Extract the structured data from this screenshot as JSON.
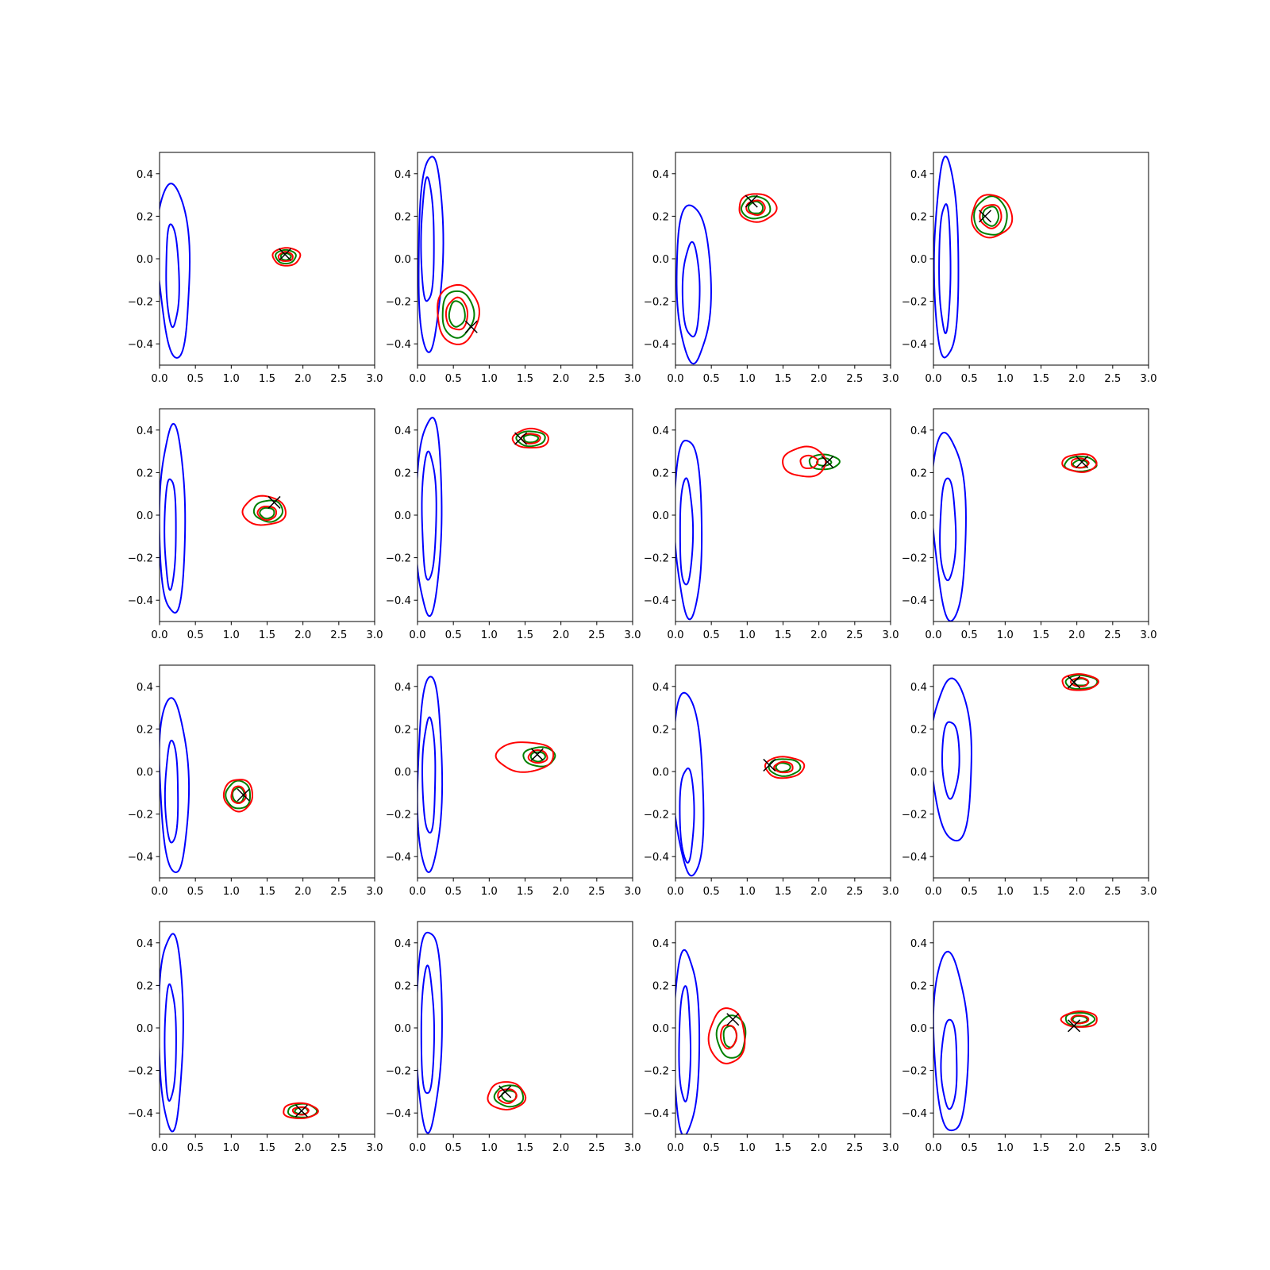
{
  "chart_data": {
    "type": "scatter",
    "layout": {
      "rows": 4,
      "cols": 4
    },
    "xlim": [
      0.0,
      3.0
    ],
    "ylim": [
      -0.5,
      0.5
    ],
    "xticks": [
      0.0,
      0.5,
      1.0,
      1.5,
      2.0,
      2.5,
      3.0
    ],
    "yticks": [
      -0.4,
      -0.2,
      0.0,
      0.2,
      0.4
    ],
    "xtick_labels": [
      "0.0",
      "0.5",
      "1.0",
      "1.5",
      "2.0",
      "2.5",
      "3.0"
    ],
    "ytick_labels": [
      "−0.4",
      "−0.2",
      "0.0",
      "0.2",
      "0.4"
    ],
    "title": "",
    "xlabel": "",
    "ylabel": "",
    "legend": "none",
    "grid": false,
    "colors": {
      "blue": "#0000ff",
      "green": "#008000",
      "red": "#ff0000",
      "marker": "#000000"
    },
    "panels": [
      {
        "blue": [
          {
            "cx": 0.2,
            "cy": -0.05,
            "rx": 0.22,
            "ry": 0.41,
            "tilt": -0.1,
            "skew": 0.05
          },
          {
            "cx": 0.18,
            "cy": -0.08,
            "rx": 0.09,
            "ry": 0.24,
            "tilt": -0.05,
            "skew": 0
          }
        ],
        "green": [
          {
            "cx": 1.76,
            "cy": 0.01,
            "rx": 0.14,
            "ry": 0.032
          },
          {
            "cx": 1.76,
            "cy": 0.01,
            "rx": 0.07,
            "ry": 0.016
          }
        ],
        "red": [
          {
            "cx": 1.77,
            "cy": 0.01,
            "rx": 0.19,
            "ry": 0.042
          },
          {
            "cx": 1.76,
            "cy": 0.01,
            "rx": 0.1,
            "ry": 0.022
          }
        ],
        "marker": {
          "x": 1.75,
          "y": 0.02
        }
      },
      {
        "blue": [
          {
            "cx": 0.18,
            "cy": 0.03,
            "rx": 0.17,
            "ry": 0.46,
            "tilt": 0.05,
            "skew": 0
          },
          {
            "cx": 0.14,
            "cy": 0.08,
            "rx": 0.09,
            "ry": 0.29,
            "tilt": 0,
            "skew": 0
          }
        ],
        "green": [
          {
            "cx": 0.56,
            "cy": -0.26,
            "rx": 0.22,
            "ry": 0.11
          },
          {
            "cx": 0.55,
            "cy": -0.26,
            "rx": 0.11,
            "ry": 0.06
          }
        ],
        "red": [
          {
            "cx": 0.56,
            "cy": -0.26,
            "rx": 0.29,
            "ry": 0.14
          },
          {
            "cx": 0.55,
            "cy": -0.26,
            "rx": 0.15,
            "ry": 0.075
          }
        ],
        "marker": {
          "x": 0.75,
          "y": -0.32
        }
      },
      {
        "blue": [
          {
            "cx": 0.25,
            "cy": -0.12,
            "rx": 0.24,
            "ry": 0.37,
            "tilt": -0.05,
            "skew": 0.05
          },
          {
            "cx": 0.22,
            "cy": -0.15,
            "rx": 0.12,
            "ry": 0.22,
            "tilt": 0,
            "skew": 0
          }
        ],
        "green": [
          {
            "cx": 1.12,
            "cy": 0.24,
            "rx": 0.2,
            "ry": 0.052
          },
          {
            "cx": 1.12,
            "cy": 0.24,
            "rx": 0.1,
            "ry": 0.028
          }
        ],
        "red": [
          {
            "cx": 1.14,
            "cy": 0.24,
            "rx": 0.26,
            "ry": 0.066
          },
          {
            "cx": 1.12,
            "cy": 0.24,
            "rx": 0.13,
            "ry": 0.034
          }
        ],
        "marker": {
          "x": 1.06,
          "y": 0.27
        }
      },
      {
        "blue": [
          {
            "cx": 0.18,
            "cy": -0.01,
            "rx": 0.17,
            "ry": 0.47,
            "tilt": 0,
            "skew": 0
          },
          {
            "cx": 0.16,
            "cy": -0.04,
            "rx": 0.08,
            "ry": 0.3,
            "tilt": 0,
            "skew": 0
          }
        ],
        "green": [
          {
            "cx": 0.8,
            "cy": 0.2,
            "rx": 0.23,
            "ry": 0.09
          },
          {
            "cx": 0.8,
            "cy": 0.2,
            "rx": 0.11,
            "ry": 0.045
          }
        ],
        "red": [
          {
            "cx": 0.81,
            "cy": 0.2,
            "rx": 0.28,
            "ry": 0.1
          },
          {
            "cx": 0.8,
            "cy": 0.2,
            "rx": 0.15,
            "ry": 0.055
          }
        ],
        "marker": {
          "x": 0.72,
          "y": 0.2
        }
      },
      {
        "blue": [
          {
            "cx": 0.18,
            "cy": -0.03,
            "rx": 0.18,
            "ry": 0.44,
            "tilt": 0,
            "skew": 0
          },
          {
            "cx": 0.15,
            "cy": -0.08,
            "rx": 0.08,
            "ry": 0.26,
            "tilt": 0,
            "skew": 0
          }
        ],
        "green": [
          {
            "cx": 1.52,
            "cy": 0.02,
            "rx": 0.2,
            "ry": 0.05
          },
          {
            "cx": 1.5,
            "cy": 0.01,
            "rx": 0.1,
            "ry": 0.025
          }
        ],
        "red": [
          {
            "cx": 1.46,
            "cy": 0.02,
            "rx": 0.3,
            "ry": 0.068
          },
          {
            "cx": 1.5,
            "cy": 0.01,
            "rx": 0.13,
            "ry": 0.032
          }
        ],
        "marker": {
          "x": 1.6,
          "y": 0.06
        }
      },
      {
        "blue": [
          {
            "cx": 0.16,
            "cy": 0.0,
            "rx": 0.18,
            "ry": 0.46,
            "tilt": 0.03,
            "skew": 0
          },
          {
            "cx": 0.16,
            "cy": 0.0,
            "rx": 0.1,
            "ry": 0.3,
            "tilt": 0,
            "skew": 0
          }
        ],
        "green": [
          {
            "cx": 1.58,
            "cy": 0.36,
            "rx": 0.2,
            "ry": 0.035
          },
          {
            "cx": 1.58,
            "cy": 0.36,
            "rx": 0.1,
            "ry": 0.018
          }
        ],
        "red": [
          {
            "cx": 1.58,
            "cy": 0.36,
            "rx": 0.25,
            "ry": 0.045
          },
          {
            "cx": 1.58,
            "cy": 0.36,
            "rx": 0.13,
            "ry": 0.023
          }
        ],
        "marker": {
          "x": 1.44,
          "y": 0.36
        }
      },
      {
        "blue": [
          {
            "cx": 0.18,
            "cy": -0.05,
            "rx": 0.19,
            "ry": 0.42,
            "tilt": -0.05,
            "skew": 0
          },
          {
            "cx": 0.15,
            "cy": -0.08,
            "rx": 0.09,
            "ry": 0.25,
            "tilt": 0,
            "skew": 0
          }
        ],
        "green": [
          {
            "cx": 2.07,
            "cy": 0.25,
            "rx": 0.21,
            "ry": 0.035
          },
          {
            "cx": 2.07,
            "cy": 0.25,
            "rx": 0.1,
            "ry": 0.018
          }
        ],
        "red": [
          {
            "cx": 1.8,
            "cy": 0.25,
            "rx": 0.3,
            "ry": 0.07
          },
          {
            "cx": 1.86,
            "cy": 0.25,
            "rx": 0.12,
            "ry": 0.03
          }
        ],
        "marker": {
          "x": 2.12,
          "y": 0.25
        }
      },
      {
        "blue": [
          {
            "cx": 0.22,
            "cy": -0.05,
            "rx": 0.23,
            "ry": 0.44,
            "tilt": -0.1,
            "skew": 0.06
          },
          {
            "cx": 0.2,
            "cy": -0.07,
            "rx": 0.11,
            "ry": 0.24,
            "tilt": 0,
            "skew": 0
          }
        ],
        "green": [
          {
            "cx": 2.05,
            "cy": 0.24,
            "rx": 0.22,
            "ry": 0.035
          },
          {
            "cx": 2.05,
            "cy": 0.24,
            "rx": 0.1,
            "ry": 0.018
          }
        ],
        "red": [
          {
            "cx": 2.04,
            "cy": 0.245,
            "rx": 0.24,
            "ry": 0.042
          },
          {
            "cx": 2.04,
            "cy": 0.245,
            "rx": 0.12,
            "ry": 0.022
          }
        ],
        "marker": {
          "x": 2.07,
          "y": 0.25
        }
      },
      {
        "blue": [
          {
            "cx": 0.2,
            "cy": -0.07,
            "rx": 0.2,
            "ry": 0.41,
            "tilt": -0.08,
            "skew": 0.05
          },
          {
            "cx": 0.17,
            "cy": -0.1,
            "rx": 0.09,
            "ry": 0.24,
            "tilt": 0,
            "skew": 0
          }
        ],
        "green": [
          {
            "cx": 1.1,
            "cy": -0.11,
            "rx": 0.17,
            "ry": 0.065
          },
          {
            "cx": 1.1,
            "cy": -0.11,
            "rx": 0.08,
            "ry": 0.035
          }
        ],
        "red": [
          {
            "cx": 1.1,
            "cy": -0.11,
            "rx": 0.2,
            "ry": 0.075
          },
          {
            "cx": 1.1,
            "cy": -0.11,
            "rx": 0.1,
            "ry": 0.04
          }
        ],
        "marker": {
          "x": 1.17,
          "y": -0.11
        }
      },
      {
        "blue": [
          {
            "cx": 0.17,
            "cy": -0.02,
            "rx": 0.17,
            "ry": 0.46,
            "tilt": 0.03,
            "skew": 0
          },
          {
            "cx": 0.16,
            "cy": -0.02,
            "rx": 0.09,
            "ry": 0.27,
            "tilt": 0,
            "skew": 0
          }
        ],
        "green": [
          {
            "cx": 1.7,
            "cy": 0.07,
            "rx": 0.22,
            "ry": 0.045
          },
          {
            "cx": 1.68,
            "cy": 0.07,
            "rx": 0.1,
            "ry": 0.022
          }
        ],
        "red": [
          {
            "cx": 1.5,
            "cy": 0.07,
            "rx": 0.4,
            "ry": 0.07
          },
          {
            "cx": 1.68,
            "cy": 0.07,
            "rx": 0.13,
            "ry": 0.03
          }
        ],
        "marker": {
          "x": 1.67,
          "y": 0.08
        }
      },
      {
        "blue": [
          {
            "cx": 0.18,
            "cy": -0.07,
            "rx": 0.21,
            "ry": 0.43,
            "tilt": -0.12,
            "skew": 0.06
          },
          {
            "cx": 0.16,
            "cy": -0.2,
            "rx": 0.1,
            "ry": 0.22,
            "tilt": 0,
            "skew": 0
          }
        ],
        "green": [
          {
            "cx": 1.52,
            "cy": 0.02,
            "rx": 0.22,
            "ry": 0.04
          },
          {
            "cx": 1.5,
            "cy": 0.02,
            "rx": 0.1,
            "ry": 0.02
          }
        ],
        "red": [
          {
            "cx": 1.52,
            "cy": 0.02,
            "rx": 0.27,
            "ry": 0.05
          },
          {
            "cx": 1.51,
            "cy": 0.02,
            "rx": 0.13,
            "ry": 0.025
          }
        ],
        "marker": {
          "x": 1.31,
          "y": 0.03
        }
      },
      {
        "blue": [
          {
            "cx": 0.26,
            "cy": 0.05,
            "rx": 0.28,
            "ry": 0.38,
            "tilt": -0.06,
            "skew": 0.03
          },
          {
            "cx": 0.24,
            "cy": 0.06,
            "rx": 0.12,
            "ry": 0.18,
            "tilt": 0,
            "skew": 0
          }
        ],
        "green": [
          {
            "cx": 2.06,
            "cy": 0.42,
            "rx": 0.22,
            "ry": 0.032
          },
          {
            "cx": 2.06,
            "cy": 0.42,
            "rx": 0.1,
            "ry": 0.016
          }
        ],
        "red": [
          {
            "cx": 2.04,
            "cy": 0.42,
            "rx": 0.25,
            "ry": 0.038
          },
          {
            "cx": 2.04,
            "cy": 0.42,
            "rx": 0.12,
            "ry": 0.02
          }
        ],
        "marker": {
          "x": 1.96,
          "y": 0.42
        }
      },
      {
        "blue": [
          {
            "cx": 0.16,
            "cy": -0.01,
            "rx": 0.17,
            "ry": 0.46,
            "tilt": 0,
            "skew": 0
          },
          {
            "cx": 0.15,
            "cy": -0.07,
            "rx": 0.08,
            "ry": 0.27,
            "tilt": 0,
            "skew": 0
          }
        ],
        "green": [
          {
            "cx": 1.99,
            "cy": -0.39,
            "rx": 0.2,
            "ry": 0.032
          },
          {
            "cx": 1.98,
            "cy": -0.39,
            "rx": 0.09,
            "ry": 0.016
          }
        ],
        "red": [
          {
            "cx": 1.96,
            "cy": -0.39,
            "rx": 0.24,
            "ry": 0.036
          },
          {
            "cx": 1.97,
            "cy": -0.39,
            "rx": 0.11,
            "ry": 0.018
          }
        ],
        "marker": {
          "x": 1.98,
          "y": -0.39
        }
      },
      {
        "blue": [
          {
            "cx": 0.16,
            "cy": 0.0,
            "rx": 0.18,
            "ry": 0.47,
            "tilt": 0.02,
            "skew": 0
          },
          {
            "cx": 0.14,
            "cy": -0.02,
            "rx": 0.09,
            "ry": 0.3,
            "tilt": 0,
            "skew": 0
          }
        ],
        "green": [
          {
            "cx": 1.28,
            "cy": -0.32,
            "rx": 0.2,
            "ry": 0.05
          },
          {
            "cx": 1.28,
            "cy": -0.32,
            "rx": 0.1,
            "ry": 0.025
          }
        ],
        "red": [
          {
            "cx": 1.24,
            "cy": -0.32,
            "rx": 0.26,
            "ry": 0.065
          },
          {
            "cx": 1.25,
            "cy": -0.32,
            "rx": 0.13,
            "ry": 0.033
          }
        ],
        "marker": {
          "x": 1.22,
          "y": -0.3
        }
      },
      {
        "blue": [
          {
            "cx": 0.15,
            "cy": -0.07,
            "rx": 0.18,
            "ry": 0.43,
            "tilt": 0,
            "skew": 0
          },
          {
            "cx": 0.13,
            "cy": -0.08,
            "rx": 0.08,
            "ry": 0.27,
            "tilt": 0,
            "skew": 0
          }
        ],
        "green": [
          {
            "cx": 0.78,
            "cy": -0.04,
            "rx": 0.2,
            "ry": 0.1
          },
          {
            "cx": 0.76,
            "cy": -0.04,
            "rx": 0.09,
            "ry": 0.05
          }
        ],
        "red": [
          {
            "cx": 0.72,
            "cy": -0.04,
            "rx": 0.25,
            "ry": 0.13
          },
          {
            "cx": 0.74,
            "cy": -0.04,
            "rx": 0.11,
            "ry": 0.055
          }
        ],
        "marker": {
          "x": 0.8,
          "y": 0.04
        }
      },
      {
        "blue": [
          {
            "cx": 0.24,
            "cy": -0.08,
            "rx": 0.24,
            "ry": 0.42,
            "tilt": -0.08,
            "skew": 0.05
          },
          {
            "cx": 0.22,
            "cy": -0.17,
            "rx": 0.11,
            "ry": 0.21,
            "tilt": 0,
            "skew": 0
          }
        ],
        "green": [
          {
            "cx": 2.04,
            "cy": 0.04,
            "rx": 0.2,
            "ry": 0.032
          },
          {
            "cx": 2.04,
            "cy": 0.04,
            "rx": 0.1,
            "ry": 0.016
          }
        ],
        "red": [
          {
            "cx": 2.04,
            "cy": 0.04,
            "rx": 0.25,
            "ry": 0.037
          },
          {
            "cx": 2.04,
            "cy": 0.04,
            "rx": 0.12,
            "ry": 0.019
          }
        ],
        "marker": {
          "x": 1.96,
          "y": 0.01
        }
      }
    ]
  }
}
